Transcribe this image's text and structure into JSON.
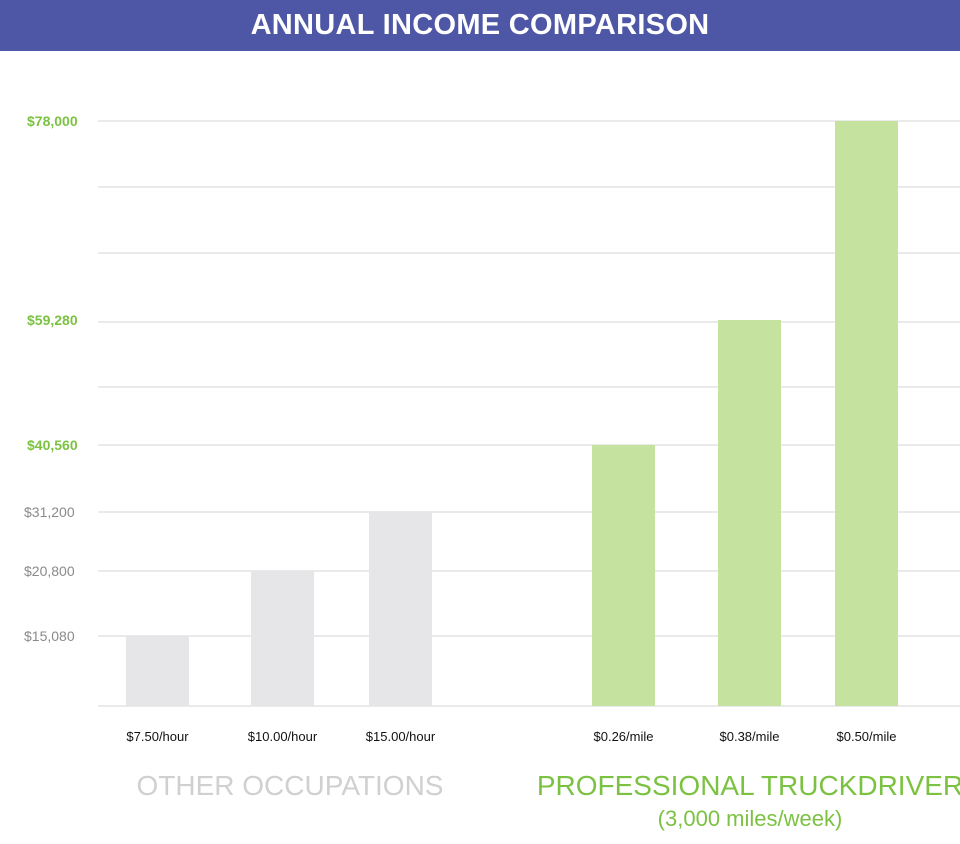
{
  "chart_data": {
    "type": "bar",
    "title": "ANNUAL INCOME COMPARISON",
    "xlabel": "",
    "ylabel": "",
    "categories": [
      "$7.50/hour",
      "$10.00/hour",
      "$15.00/hour",
      "$0.26/mile",
      "$0.38/mile",
      "$0.50/mile"
    ],
    "values": [
      15080,
      20800,
      31200,
      40560,
      59280,
      78000
    ],
    "groups": [
      {
        "name": "OTHER OCCUPATIONS",
        "subtitle": "",
        "color": "#e6e6e8",
        "label_color": "#999999",
        "categories": [
          0,
          1,
          2
        ]
      },
      {
        "name": "PROFESSIONAL TRUCKDRIVER",
        "subtitle": "(3,000 miles/week)",
        "color": "#c5e29f",
        "label_color": "#7cc242",
        "categories": [
          3,
          4,
          5
        ]
      }
    ],
    "y_tick_labels": [
      "$15,080",
      "$20,800",
      "$31,200",
      "$40,560",
      "$59,280",
      "$78,000"
    ],
    "y_tick_values": [
      15080,
      20800,
      31200,
      40560,
      59280,
      78000
    ],
    "grid": true,
    "ylim": [
      0,
      78000
    ],
    "header_color": "#4e56a6"
  }
}
